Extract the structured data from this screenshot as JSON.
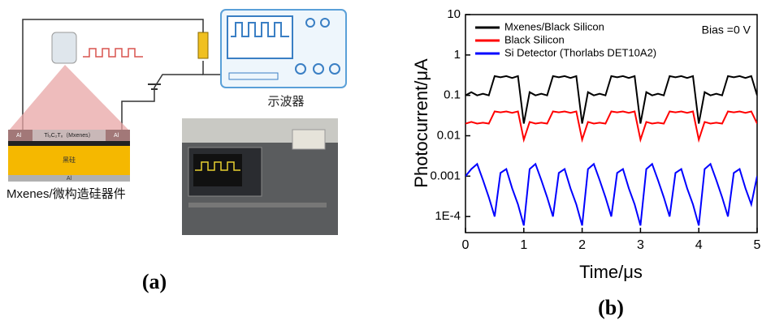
{
  "panel_a": {
    "oscilloscope_label": "示波器",
    "device_label": "Mxenes/微构造硅器件",
    "layer_top": "Ti₃C₂Tₓ（Mxenes）",
    "electrode_left": "Al",
    "electrode_right": "Al",
    "electrode_bottom": "Al",
    "layer_silicon": "黑硅",
    "panel_label": "(a)"
  },
  "chart_data": {
    "type": "line",
    "panel_label": "(b)",
    "xlabel": "Time/μs",
    "ylabel": "Photocurrent/μA",
    "annotation": "Bias =0 V",
    "yscale": "log",
    "xlim": [
      0,
      5
    ],
    "ylim": [
      4e-05,
      10
    ],
    "xticks": [
      0,
      1,
      2,
      3,
      4,
      5
    ],
    "yticks": [
      10,
      1,
      0.1,
      0.01,
      0.001,
      {
        "value": 0.0001,
        "label": "1E-4"
      }
    ],
    "legend": "upper left",
    "x": [
      0,
      0.1,
      0.2,
      0.3,
      0.4,
      0.5,
      0.6,
      0.7,
      0.8,
      0.9,
      1,
      1.1,
      1.2,
      1.3,
      1.4,
      1.5,
      1.6,
      1.7,
      1.8,
      1.9,
      2,
      2.1,
      2.2,
      2.3,
      2.4,
      2.5,
      2.6,
      2.7,
      2.8,
      2.9,
      3,
      3.1,
      3.2,
      3.3,
      3.4,
      3.5,
      3.6,
      3.7,
      3.8,
      3.9,
      4,
      4.1,
      4.2,
      4.3,
      4.4,
      4.5,
      4.6,
      4.7,
      4.8,
      4.9,
      5
    ],
    "series": [
      {
        "name": "Mxenes/Black Silicon",
        "color": "#000000",
        "values": [
          0.1,
          0.12,
          0.1,
          0.11,
          0.1,
          0.3,
          0.28,
          0.3,
          0.27,
          0.3,
          0.02,
          0.12,
          0.1,
          0.11,
          0.1,
          0.3,
          0.28,
          0.3,
          0.27,
          0.3,
          0.02,
          0.12,
          0.1,
          0.11,
          0.1,
          0.3,
          0.28,
          0.3,
          0.27,
          0.3,
          0.02,
          0.12,
          0.1,
          0.11,
          0.1,
          0.3,
          0.28,
          0.3,
          0.27,
          0.3,
          0.02,
          0.12,
          0.1,
          0.11,
          0.1,
          0.3,
          0.28,
          0.3,
          0.27,
          0.3,
          0.1
        ]
      },
      {
        "name": "Black Silicon",
        "color": "#ff0000",
        "values": [
          0.02,
          0.022,
          0.02,
          0.021,
          0.02,
          0.04,
          0.038,
          0.04,
          0.037,
          0.04,
          0.008,
          0.022,
          0.02,
          0.021,
          0.02,
          0.04,
          0.038,
          0.04,
          0.037,
          0.04,
          0.008,
          0.022,
          0.02,
          0.021,
          0.02,
          0.04,
          0.038,
          0.04,
          0.037,
          0.04,
          0.008,
          0.022,
          0.02,
          0.021,
          0.02,
          0.04,
          0.038,
          0.04,
          0.037,
          0.04,
          0.008,
          0.022,
          0.02,
          0.021,
          0.02,
          0.04,
          0.038,
          0.04,
          0.037,
          0.04,
          0.02
        ]
      },
      {
        "name": "Si Detector (Thorlabs DET10A2)",
        "color": "#0000ff",
        "values": [
          0.001,
          0.0015,
          0.002,
          0.0008,
          0.0003,
          0.0001,
          0.0012,
          0.0015,
          0.0005,
          0.0002,
          6e-05,
          0.0015,
          0.002,
          0.0008,
          0.0003,
          0.0001,
          0.0012,
          0.0015,
          0.0005,
          0.0002,
          6e-05,
          0.0015,
          0.002,
          0.0008,
          0.0003,
          0.0001,
          0.0012,
          0.0015,
          0.0005,
          0.0002,
          6e-05,
          0.0015,
          0.002,
          0.0008,
          0.0003,
          0.0001,
          0.0012,
          0.0015,
          0.0005,
          0.0002,
          6e-05,
          0.0015,
          0.002,
          0.0008,
          0.0003,
          0.0001,
          0.0012,
          0.0015,
          0.0005,
          0.0002,
          0.001
        ]
      }
    ]
  }
}
